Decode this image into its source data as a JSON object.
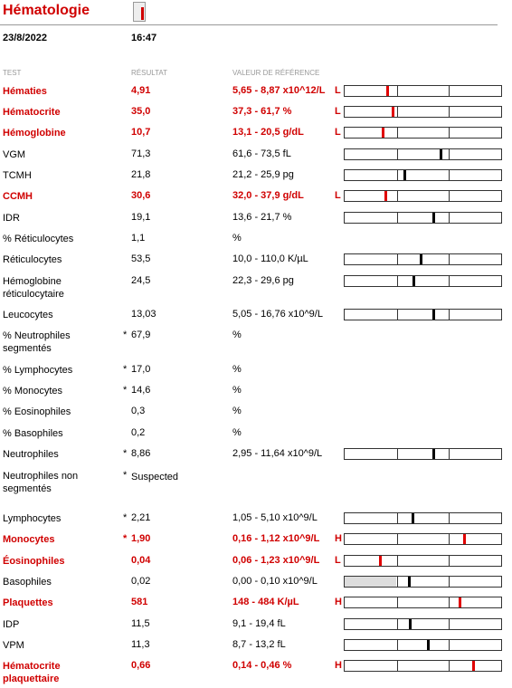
{
  "header": {
    "title": "Hématologie",
    "date": "23/8/2022",
    "time": "16:47"
  },
  "columns": [
    "TEST",
    "RÉSULTAT",
    "VALEUR DE RÉFÉRENCE"
  ],
  "colors": {
    "abnormal": "#e00000",
    "normal": "#000000"
  },
  "rows": [
    {
      "test": "Hématies",
      "result": "4,91",
      "reference": "5,65 - 8,87 x10^12/L",
      "flag": "L",
      "abnormal": true,
      "marker": 27.6
    },
    {
      "test": "Hématocrite",
      "result": "35,0",
      "reference": "37,3 - 61,7 %",
      "flag": "L",
      "abnormal": true,
      "marker": 31
    },
    {
      "test": "Hémoglobine",
      "result": "10,7",
      "reference": "13,1 - 20,5 g/dL",
      "flag": "L",
      "abnormal": true,
      "marker": 24.7
    },
    {
      "test": "VGM",
      "result": "71,3",
      "reference": "61,6 - 73,5 fL",
      "marker": 61.5
    },
    {
      "test": "TCMH",
      "result": "21,8",
      "reference": "21,2 - 25,9 pg",
      "marker": 38.5
    },
    {
      "test": "CCMH",
      "result": "30,6",
      "reference": "32,0 - 37,9 g/dL",
      "flag": "L",
      "abnormal": true,
      "marker": 26.4
    },
    {
      "test": "IDR",
      "result": "19,1",
      "reference": "13,6 - 21,7 %",
      "marker": 57
    },
    {
      "test": "% Réticulocytes",
      "result": "1,1",
      "reference": "%"
    },
    {
      "test": "Réticulocytes",
      "result": "53,5",
      "reference": "10,0 - 110,0 K/µL",
      "marker": 49
    },
    {
      "test": "Hémoglobine réticulocytaire",
      "result": "24,5",
      "reference": "22,3 - 29,6 pg",
      "marker": 44
    },
    {
      "test": "Leucocytes",
      "result": "13,03",
      "reference": "5,05 - 16,76 x10^9/L",
      "marker": 57
    },
    {
      "test": "% Neutrophiles segmentés",
      "star": "*",
      "result": "67,9",
      "reference": "%"
    },
    {
      "test": "% Lymphocytes",
      "star": "*",
      "result": "17,0",
      "reference": "%"
    },
    {
      "test": "% Monocytes",
      "star": "*",
      "result": "14,6",
      "reference": "%"
    },
    {
      "test": "% Eosinophiles",
      "result": "0,3",
      "reference": "%"
    },
    {
      "test": "% Basophiles",
      "result": "0,2",
      "reference": "%"
    },
    {
      "test": "Neutrophiles",
      "star": "*",
      "result": "8,86",
      "reference": "2,95 - 11,64 x10^9/L",
      "marker": 57
    },
    {
      "test": "Neutrophiles non segmentés",
      "star": "*",
      "result": "Suspected"
    },
    {
      "test": "Lymphocytes",
      "star": "*",
      "result": "2,21",
      "reference": "1,05 - 5,10 x10^9/L",
      "marker": 43.7
    },
    {
      "test": "Monocytes",
      "star": "*",
      "result": "1,90",
      "reference": "0,16 - 1,12 x10^9/L",
      "flag": "H",
      "abnormal": true,
      "marker": 76.4
    },
    {
      "test": "Éosinophiles",
      "result": "0,04",
      "reference": "0,06 - 1,23 x10^9/L",
      "flag": "L",
      "abnormal": true,
      "marker": 23
    },
    {
      "test": "Basophiles",
      "result": "0,02",
      "reference": "0,00 - 0,10 x10^9/L",
      "marker": 41.4,
      "shade": true
    },
    {
      "test": "Plaquettes",
      "result": "581",
      "reference": "148 - 484 K/µL",
      "flag": "H",
      "abnormal": true,
      "marker": 73.6
    },
    {
      "test": "IDP",
      "result": "11,5",
      "reference": "9,1 - 19,4 fL",
      "marker": 42
    },
    {
      "test": "VPM",
      "result": "11,3",
      "reference": "8,7 - 13,2 fL",
      "marker": 53.4
    },
    {
      "test": "Hématocrite plaquettaire",
      "result": "0,66",
      "reference": "0,14 - 0,46 %",
      "flag": "H",
      "abnormal": true,
      "marker": 82.2
    }
  ]
}
